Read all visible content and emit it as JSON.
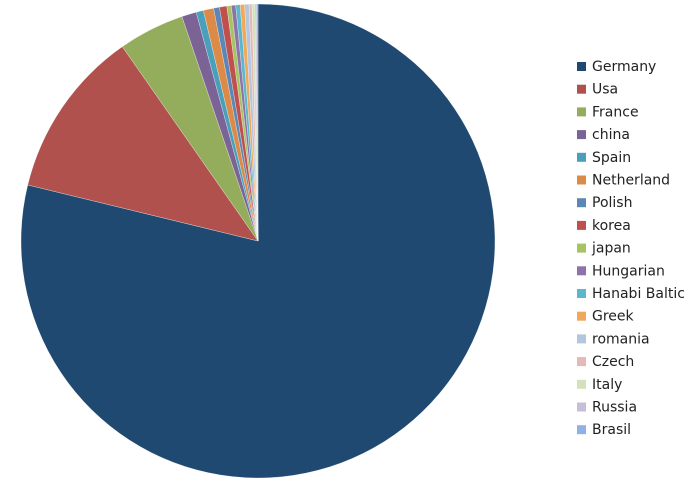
{
  "chart_data": {
    "type": "pie",
    "categories": [
      "Germany",
      "Usa",
      "France",
      "china",
      "Spain",
      "Netherland",
      "Polish",
      "korea",
      "japan",
      "Hungarian",
      "Hanabi Baltic",
      "Greek",
      "romania",
      "Czech",
      "Italy",
      "Russia",
      "Brasil"
    ],
    "values": [
      78.8,
      11.5,
      4.5,
      1.0,
      0.5,
      0.7,
      0.4,
      0.5,
      0.3,
      0.3,
      0.3,
      0.3,
      0.3,
      0.2,
      0.2,
      0.1,
      0.1
    ],
    "colors": [
      "#1f4970",
      "#b0514d",
      "#93ad5c",
      "#7b6396",
      "#4a9fba",
      "#db8a48",
      "#5b87b7",
      "#c0504d",
      "#a6c464",
      "#8c73a8",
      "#5bb8cc",
      "#f0a85a",
      "#b3c6e0",
      "#e6b8b6",
      "#d3e2bd",
      "#c7bfd6",
      "#8fb1e6"
    ],
    "legend": "right"
  }
}
